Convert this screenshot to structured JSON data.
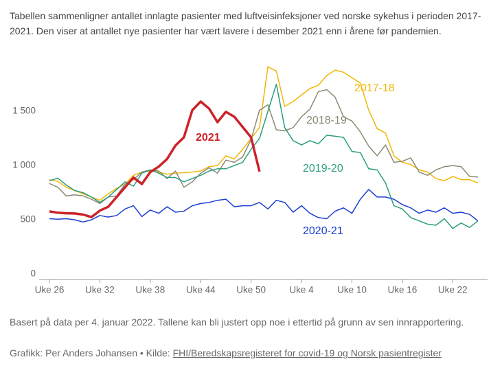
{
  "chart_data": {
    "type": "line",
    "title": "Tabellen sammenligner antallet innlagte pasienter med luftveisinfeksjoner ved norske sykehus i perioden 2017-2021. Den viser at antallet nye pasienter har vært lavere i desember 2021 enn i årene før pandemien.",
    "note": "Basert på data per 4. januar 2022. Tallene kan bli justert opp noe i ettertid på grunn av sen innrapportering.",
    "credit": "Grafikk: Per Anders Johansen • Kilde:",
    "source_link": "FHI/Beredskapsregisteret for covid-19 og Norsk pasientregister",
    "categories": [
      "Uke 26",
      null,
      null,
      null,
      null,
      null,
      "Uke 32",
      null,
      null,
      null,
      null,
      null,
      "Uke 38",
      null,
      null,
      null,
      null,
      null,
      "Uke 44",
      null,
      null,
      null,
      null,
      null,
      "Uke 50",
      null,
      null,
      null,
      null,
      null,
      "Uke 4",
      null,
      null,
      null,
      null,
      null,
      "Uke 10",
      null,
      null,
      null,
      null,
      null,
      "Uke 16",
      null,
      null,
      null,
      null,
      null,
      "Uke 22",
      null,
      null,
      null
    ],
    "ylim": [
      0,
      2000
    ],
    "yticks": [
      0,
      500,
      {
        "value": 1000,
        "label": "1 000"
      },
      {
        "value": 1500,
        "label": "1 500"
      }
    ],
    "grid": false,
    "series": [
      {
        "name": "2017-18",
        "color": "#f2b705",
        "values": [
          920,
          905,
          850,
          820,
          790,
          760,
          730,
          790,
          840,
          880,
          960,
          990,
          1000,
          990,
          970,
          980,
          985,
          990,
          1000,
          1040,
          1050,
          1140,
          1110,
          1200,
          1300,
          1400,
          1960,
          1920,
          1595,
          1640,
          1700,
          1760,
          1790,
          1880,
          1930,
          1910,
          1860,
          1810,
          1560,
          1390,
          1350,
          1140,
          1080,
          1060,
          1010,
          990,
          930,
          910,
          950,
          920,
          920,
          890
        ]
      },
      {
        "name": "2018-19",
        "color": "#8c8a74",
        "values": [
          885,
          850,
          770,
          780,
          770,
          740,
          700,
          760,
          770,
          880,
          920,
          990,
          1010,
          1000,
          930,
          1000,
          850,
          900,
          980,
          1030,
          980,
          1100,
          1080,
          1130,
          1290,
          1560,
          1610,
          1380,
          1370,
          1400,
          1500,
          1570,
          1730,
          1750,
          1680,
          1500,
          1460,
          1360,
          1230,
          1140,
          1240,
          1080,
          1090,
          1120,
          990,
          960,
          1010,
          1040,
          1050,
          1040,
          950,
          945
        ]
      },
      {
        "name": "2019-20",
        "color": "#2a9d7f",
        "values": [
          910,
          935,
          870,
          820,
          800,
          760,
          710,
          760,
          830,
          900,
          860,
          980,
          1010,
          980,
          940,
          940,
          900,
          930,
          960,
          1000,
          1020,
          1020,
          1050,
          1080,
          1200,
          1300,
          1550,
          1800,
          1400,
          1280,
          1240,
          1280,
          1250,
          1330,
          1320,
          1310,
          1180,
          1170,
          1020,
          1010,
          890,
          680,
          650,
          570,
          540,
          510,
          500,
          560,
          470,
          520,
          480,
          540
        ]
      },
      {
        "name": "2020-21",
        "color": "#1a3fd1",
        "values": [
          560,
          555,
          560,
          550,
          530,
          550,
          590,
          575,
          590,
          650,
          680,
          580,
          640,
          610,
          670,
          620,
          630,
          680,
          700,
          710,
          730,
          740,
          670,
          680,
          680,
          710,
          650,
          730,
          710,
          620,
          680,
          610,
          570,
          560,
          630,
          660,
          610,
          740,
          830,
          760,
          760,
          740,
          690,
          660,
          610,
          640,
          620,
          660,
          610,
          620,
          600,
          540
        ]
      },
      {
        "name": "2021",
        "color": "#cc2229",
        "values": [
          627,
          615,
          610,
          608,
          598,
          575,
          635,
          670,
          760,
          850,
          940,
          880,
          990,
          1040,
          1110,
          1235,
          1310,
          1560,
          1640,
          1575,
          1450,
          1545,
          1500,
          1405,
          1310,
          995,
          null,
          null,
          null,
          null,
          null,
          null,
          null,
          null,
          null,
          null,
          null,
          null,
          null,
          null,
          null,
          null,
          null,
          null,
          null,
          null,
          null,
          null,
          null,
          null,
          null,
          null
        ]
      }
    ]
  }
}
